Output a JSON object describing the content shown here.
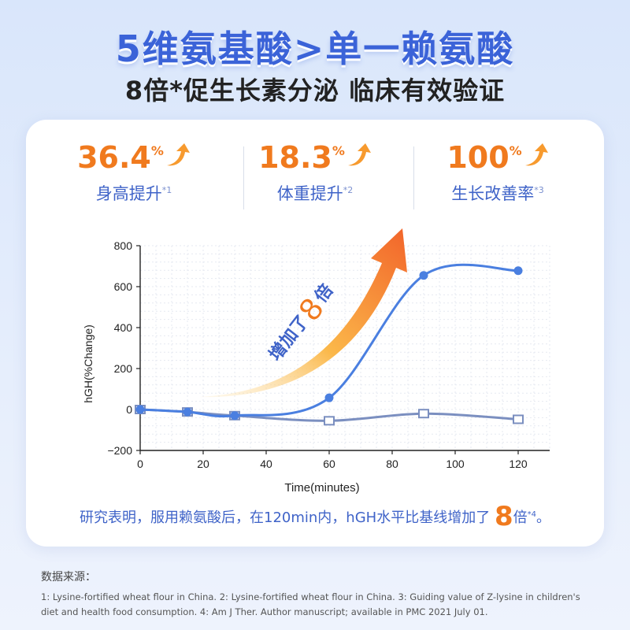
{
  "headline": "5维氨基酸>单一赖氨酸",
  "subheadline": "8倍*促生长素分泌 临床有效验证",
  "stats": [
    {
      "value": "36.4",
      "unit": "%",
      "label": "身高提升",
      "ref": "*1"
    },
    {
      "value": "18.3",
      "unit": "%",
      "label": "体重提升",
      "ref": "*2"
    },
    {
      "value": "100",
      "unit": "%",
      "label": "生长改善率",
      "ref": "*3"
    }
  ],
  "chart_data": {
    "type": "line",
    "xlabel": "Time(minutes)",
    "ylabel": "hGH(%Change)",
    "xlim": [
      0,
      130
    ],
    "ylim": [
      -200,
      800
    ],
    "xticks": [
      0,
      20,
      40,
      60,
      80,
      100,
      120
    ],
    "yticks": [
      -200,
      0,
      200,
      400,
      600,
      800
    ],
    "series": [
      {
        "color": "#4a7fe0",
        "marker": "circle",
        "x": [
          0,
          15,
          30,
          60,
          90,
          120
        ],
        "y": [
          0,
          -12,
          -30,
          57,
          655,
          678
        ]
      },
      {
        "color": "#7b8fc0",
        "marker": "square-open",
        "x": [
          0,
          15,
          30,
          60,
          90,
          120
        ],
        "y": [
          0,
          -12,
          -30,
          -55,
          -20,
          -48
        ]
      }
    ],
    "annotation": {
      "text": "增加了",
      "number": "8",
      "suffix": "倍"
    },
    "grid": true
  },
  "conclusion": {
    "text": "研究表明，服用赖氨酸后，在120min内，hGH水平比基线增加了",
    "number": "8",
    "suffix": "倍",
    "ref": "*4",
    "end": "。"
  },
  "sources": {
    "title": "数据来源：",
    "text": "1: Lysine-fortified wheat flour in China.  2: Lysine-fortified wheat flour in China.  3: Guiding value of Z-lysine in children's diet and health food consumption.  4: Am J Ther. Author manuscript; available in PMC 2021 July 01."
  },
  "colors": {
    "accent_orange": "#f07a1e",
    "primary_blue": "#3f63c8",
    "line_blue": "#4a7fe0",
    "line_gray": "#7b8fc0"
  }
}
